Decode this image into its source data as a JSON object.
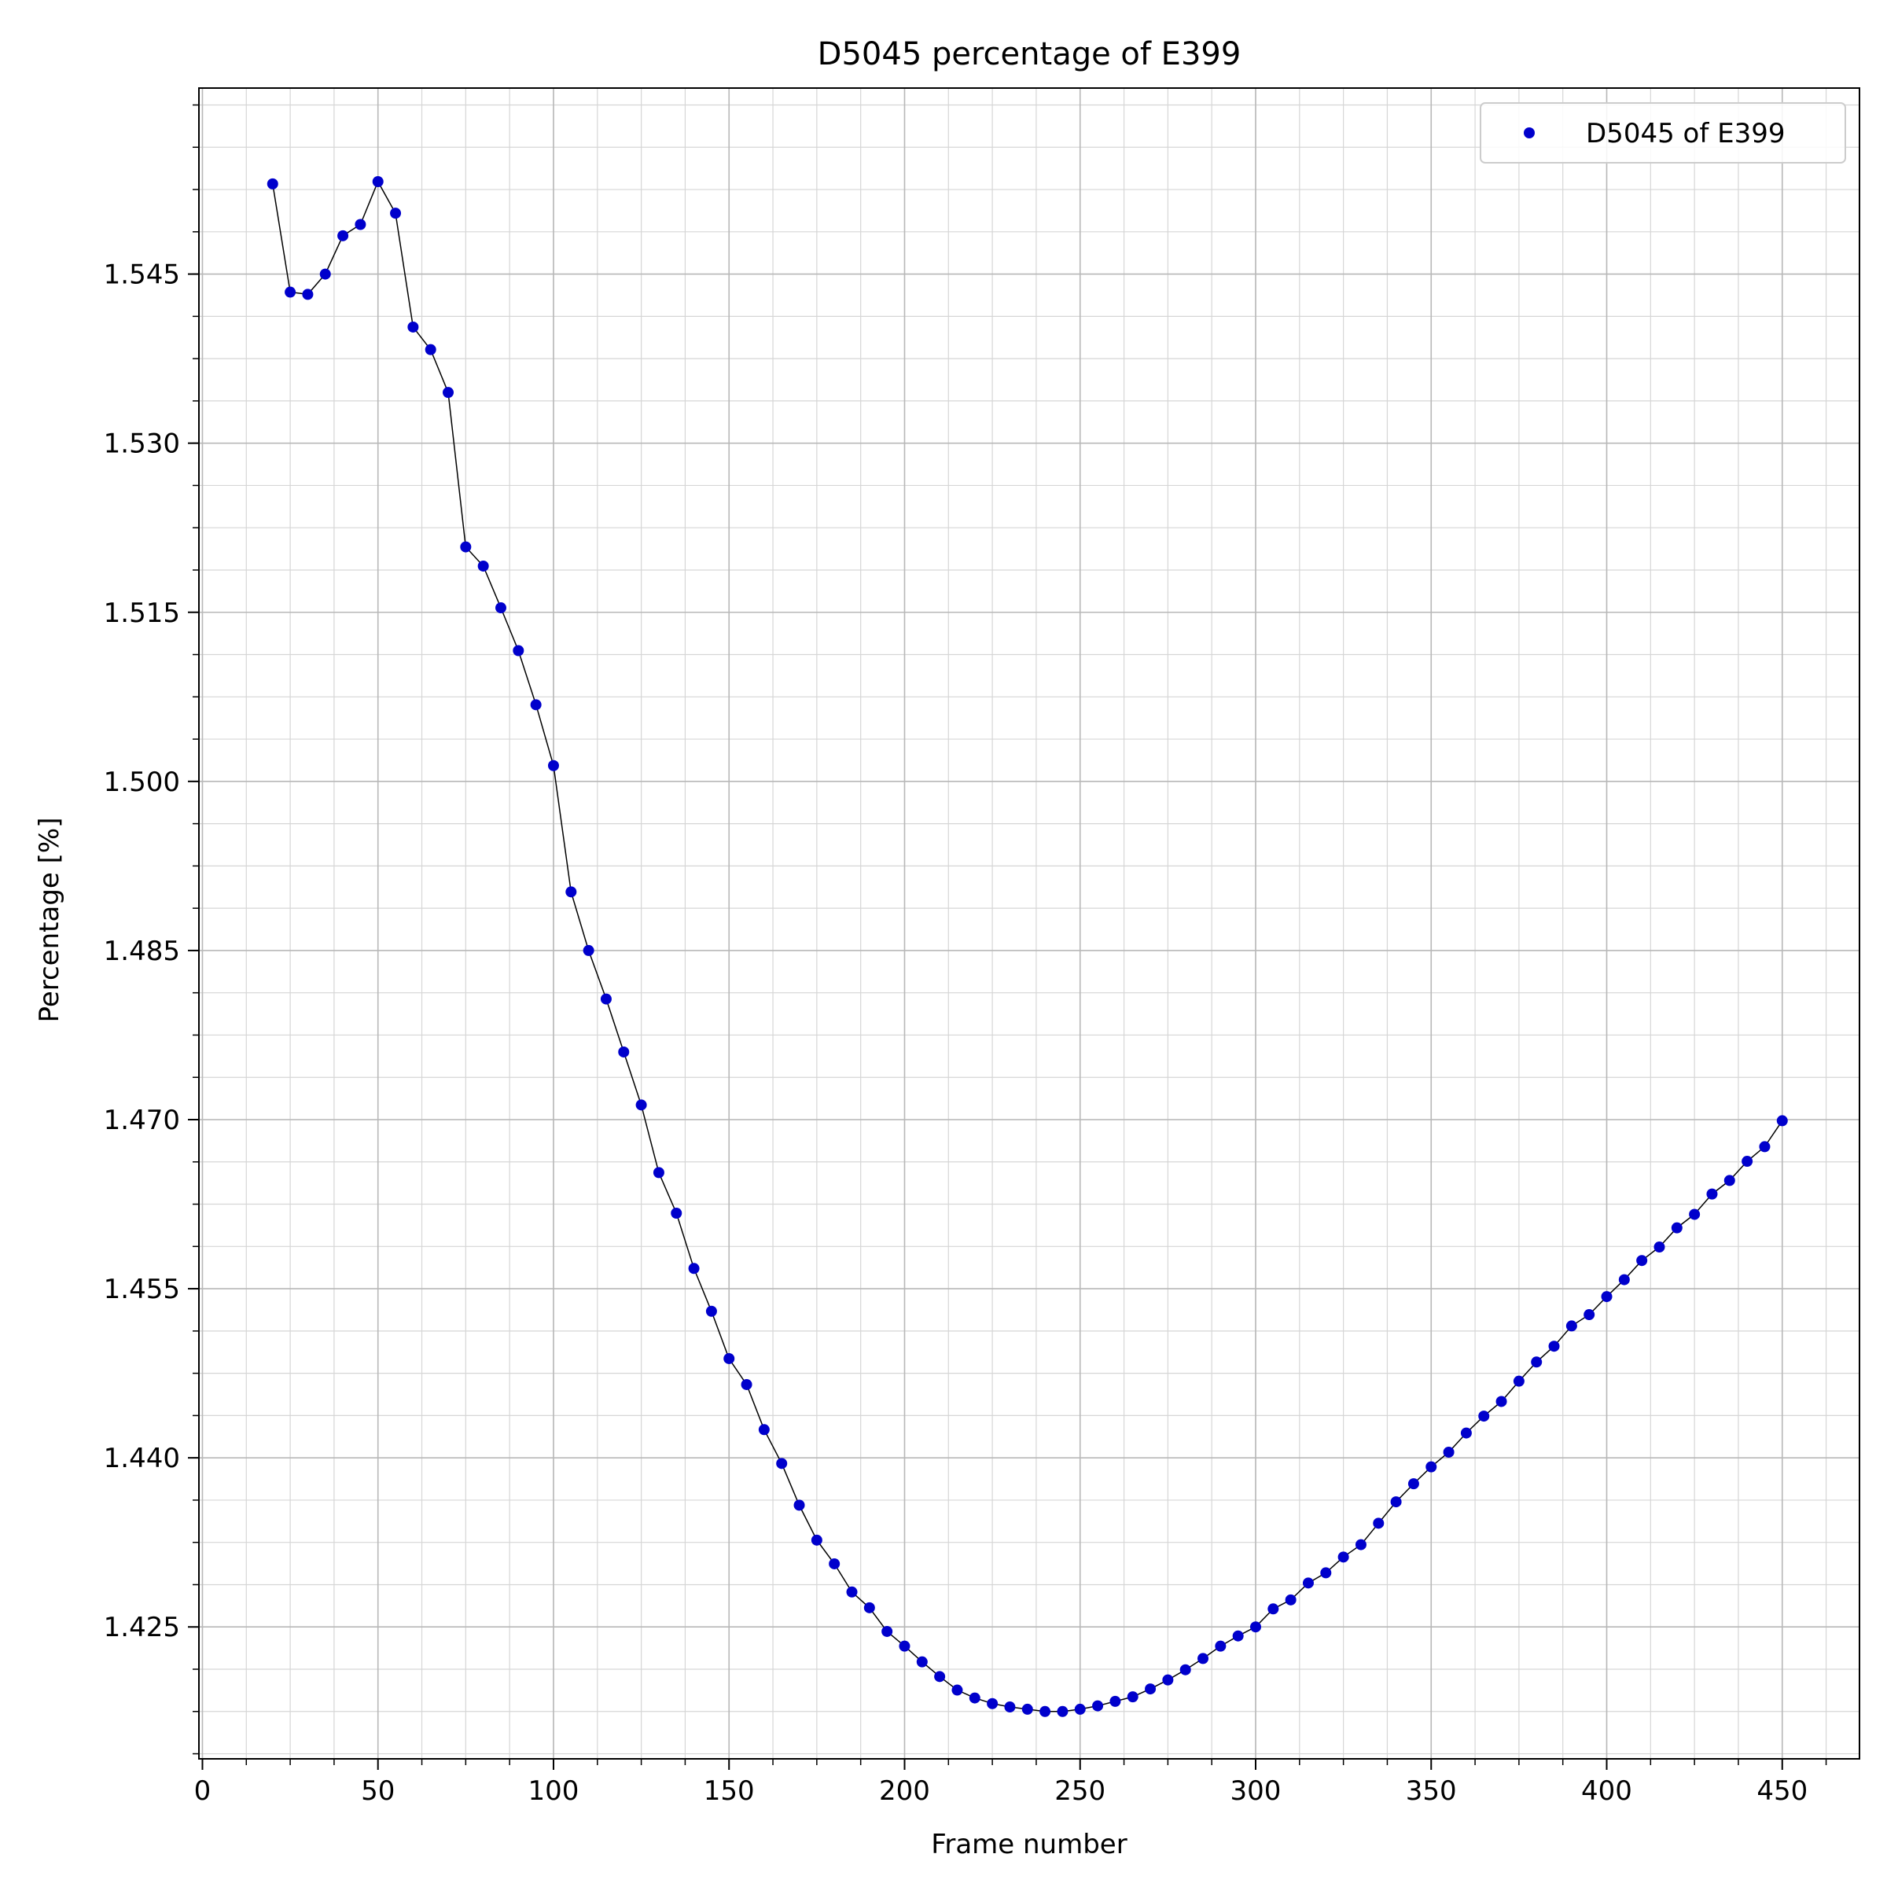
{
  "chart_data": {
    "type": "line",
    "title": "D5045 percentage of E399",
    "xlabel": "Frame number",
    "ylabel": "Percentage [%]",
    "xlim": [
      -1,
      472
    ],
    "ylim": [
      1.4133,
      1.5615
    ],
    "x_ticks": [
      0,
      50,
      100,
      150,
      200,
      250,
      300,
      350,
      400,
      450
    ],
    "x_tick_labels": [
      "0",
      "50",
      "100",
      "150",
      "200",
      "250",
      "300",
      "350",
      "400",
      "450"
    ],
    "y_ticks": [
      1.425,
      1.44,
      1.455,
      1.47,
      1.485,
      1.5,
      1.515,
      1.53,
      1.545
    ],
    "y_tick_labels": [
      "1.425",
      "1.440",
      "1.455",
      "1.470",
      "1.485",
      "1.500",
      "1.515",
      "1.530",
      "1.545"
    ],
    "x_minor_step": 12.5,
    "y_minor_step": 0.00375,
    "grid": true,
    "legend_position": "top-right",
    "series": [
      {
        "name": "D5045 of E399",
        "marker_color": "#0000cc",
        "line_color": "#000000",
        "x": [
          20,
          25,
          30,
          35,
          40,
          45,
          50,
          55,
          60,
          65,
          70,
          75,
          80,
          85,
          90,
          95,
          100,
          105,
          110,
          115,
          120,
          125,
          130,
          135,
          140,
          145,
          150,
          155,
          160,
          165,
          170,
          175,
          180,
          185,
          190,
          195,
          200,
          205,
          210,
          215,
          220,
          225,
          230,
          235,
          240,
          245,
          250,
          255,
          260,
          265,
          270,
          275,
          280,
          285,
          290,
          295,
          300,
          305,
          310,
          315,
          320,
          325,
          330,
          335,
          340,
          345,
          350,
          355,
          360,
          365,
          370,
          375,
          380,
          385,
          390,
          395,
          400,
          405,
          410,
          415,
          420,
          425,
          430,
          435,
          440,
          445,
          450
        ],
        "y": [
          1.553,
          1.5434,
          1.5432,
          1.545,
          1.5484,
          1.5494,
          1.5532,
          1.5504,
          1.5403,
          1.5383,
          1.5345,
          1.5208,
          1.5191,
          1.5154,
          1.5116,
          1.5068,
          1.5014,
          1.4902,
          1.485,
          1.4807,
          1.476,
          1.4713,
          1.4653,
          1.4617,
          1.4568,
          1.453,
          1.4488,
          1.4465,
          1.4425,
          1.4395,
          1.4358,
          1.4327,
          1.4306,
          1.4281,
          1.4267,
          1.4246,
          1.4233,
          1.4219,
          1.4206,
          1.4194,
          1.4187,
          1.4182,
          1.4179,
          1.4177,
          1.4175,
          1.4175,
          1.4177,
          1.418,
          1.4184,
          1.4188,
          1.4195,
          1.4203,
          1.4212,
          1.4222,
          1.4233,
          1.4242,
          1.425,
          1.4266,
          1.4274,
          1.4289,
          1.4298,
          1.4312,
          1.4323,
          1.4342,
          1.4361,
          1.4377,
          1.4392,
          1.4405,
          1.4422,
          1.4437,
          1.445,
          1.4468,
          1.4485,
          1.4499,
          1.4517,
          1.4527,
          1.4543,
          1.4558,
          1.4575,
          1.4587,
          1.4604,
          1.4616,
          1.4634,
          1.4646,
          1.4663,
          1.4676,
          1.4699
        ]
      }
    ]
  }
}
